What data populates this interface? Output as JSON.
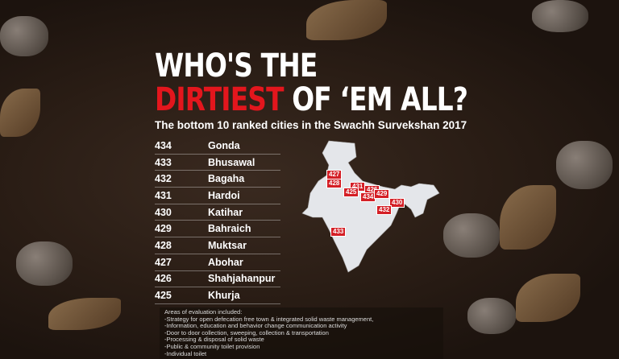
{
  "title": {
    "line1": "WHO'S THE",
    "highlight": "DIRTIEST",
    "line2_rest": " OF ‘EM ALL?"
  },
  "subtitle": "The bottom 10 ranked cities in the Swachh Survekshan 2017",
  "cities": [
    {
      "rank": "434",
      "name": "Gonda"
    },
    {
      "rank": "433",
      "name": "Bhusawal"
    },
    {
      "rank": "432",
      "name": "Bagaha"
    },
    {
      "rank": "431",
      "name": "Hardoi"
    },
    {
      "rank": "430",
      "name": "Katihar"
    },
    {
      "rank": "429",
      "name": "Bahraich"
    },
    {
      "rank": "428",
      "name": "Muktsar"
    },
    {
      "rank": "427",
      "name": "Abohar"
    },
    {
      "rank": "426",
      "name": "Shahjahanpur"
    },
    {
      "rank": "425",
      "name": "Khurja"
    }
  ],
  "map_labels": [
    "427",
    "428",
    "431",
    "426",
    "425",
    "434",
    "429",
    "430",
    "432",
    "433"
  ],
  "notes": {
    "heading": "Areas of evaluation included:",
    "items": [
      "-Strategy for open defecation free town & integrated solid waste management,",
      "-Information, education and behavior change communication activity",
      "-Door to door collection, sweeping, collection & transportation",
      "-Processing & disposal of solid waste",
      "-Public & community toilet provision",
      "-Individual toilet"
    ]
  },
  "colors": {
    "accent": "#e3161d",
    "map": "#e4e6ea"
  }
}
